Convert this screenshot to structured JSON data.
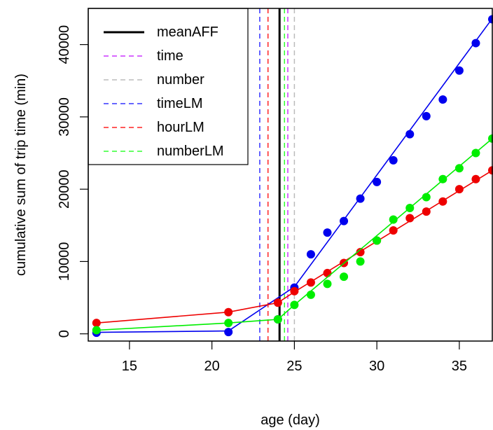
{
  "chart_data": {
    "type": "scatter",
    "title": "",
    "xlabel": "age (day)",
    "ylabel": "cumulative sum of trip time (min)",
    "xlim": [
      12.5,
      37
    ],
    "ylim": [
      -1000,
      45000
    ],
    "xticks": [
      15,
      20,
      25,
      30,
      35
    ],
    "yticks": [
      0,
      10000,
      20000,
      30000,
      40000
    ],
    "grid": false,
    "legend_position": "top-left",
    "vlines": [
      {
        "name": "meanAFF",
        "x": 24.1,
        "color": "#000000",
        "style": "solid"
      },
      {
        "name": "time",
        "x": 24.6,
        "color": "#cc33ff",
        "style": "dashed"
      },
      {
        "name": "number",
        "x": 25.0,
        "color": "#bbbbbb",
        "style": "dashed"
      },
      {
        "name": "timeLM",
        "x": 22.9,
        "color": "#3333ff",
        "style": "dashed"
      },
      {
        "name": "hourLM",
        "x": 23.4,
        "color": "#ff2222",
        "style": "dashed"
      },
      {
        "name": "numberLM",
        "x": 24.4,
        "color": "#33ff33",
        "style": "dashed"
      }
    ],
    "legend": [
      {
        "label": "meanAFF",
        "color": "#000000",
        "style": "solid"
      },
      {
        "label": "time",
        "color": "#cc33ff",
        "style": "dashed"
      },
      {
        "label": "number",
        "color": "#bbbbbb",
        "style": "dashed"
      },
      {
        "label": "timeLM",
        "color": "#3333ff",
        "style": "dashed"
      },
      {
        "label": "hourLM",
        "color": "#ff2222",
        "style": "dashed"
      },
      {
        "label": "numberLM",
        "color": "#33ff33",
        "style": "dashed"
      }
    ],
    "series": [
      {
        "color": "#0000ee",
        "points": [
          [
            13,
            150
          ],
          [
            21,
            250
          ],
          [
            24,
            2000
          ],
          [
            25,
            6400
          ],
          [
            26,
            11000
          ],
          [
            27,
            14000
          ],
          [
            28,
            15600
          ],
          [
            29,
            18700
          ],
          [
            30,
            21000
          ],
          [
            31,
            24000
          ],
          [
            32,
            27600
          ],
          [
            33,
            30100
          ],
          [
            34,
            32400
          ],
          [
            35,
            36400
          ],
          [
            36,
            40200
          ],
          [
            37,
            43500
          ]
        ],
        "fit": [
          [
            13,
            200
          ],
          [
            21,
            400
          ],
          [
            25,
            6500
          ],
          [
            37,
            43600
          ]
        ]
      },
      {
        "color": "#ee0000",
        "points": [
          [
            13,
            1500
          ],
          [
            21,
            3000
          ],
          [
            24,
            4300
          ],
          [
            25,
            5900
          ],
          [
            26,
            7100
          ],
          [
            27,
            8400
          ],
          [
            28,
            9800
          ],
          [
            29,
            11300
          ],
          [
            30,
            12900
          ],
          [
            31,
            14300
          ],
          [
            32,
            16000
          ],
          [
            33,
            16900
          ],
          [
            34,
            18300
          ],
          [
            35,
            20000
          ],
          [
            36,
            21400
          ],
          [
            37,
            22600
          ]
        ],
        "fit": [
          [
            13,
            1500
          ],
          [
            21,
            3000
          ],
          [
            24,
            4300
          ],
          [
            25,
            5800
          ],
          [
            37,
            22600
          ]
        ]
      },
      {
        "color": "#00ee00",
        "points": [
          [
            13,
            500
          ],
          [
            21,
            1500
          ],
          [
            24,
            2000
          ],
          [
            25,
            4000
          ],
          [
            26,
            5400
          ],
          [
            27,
            6900
          ],
          [
            28,
            7900
          ],
          [
            29,
            10000
          ],
          [
            30,
            12900
          ],
          [
            31,
            15800
          ],
          [
            32,
            17400
          ],
          [
            33,
            18900
          ],
          [
            34,
            21400
          ],
          [
            35,
            22900
          ],
          [
            36,
            25000
          ],
          [
            37,
            27000
          ]
        ],
        "fit": [
          [
            13,
            500
          ],
          [
            21,
            1500
          ],
          [
            24,
            2000
          ],
          [
            25,
            4000
          ],
          [
            37,
            27000
          ]
        ]
      }
    ]
  }
}
